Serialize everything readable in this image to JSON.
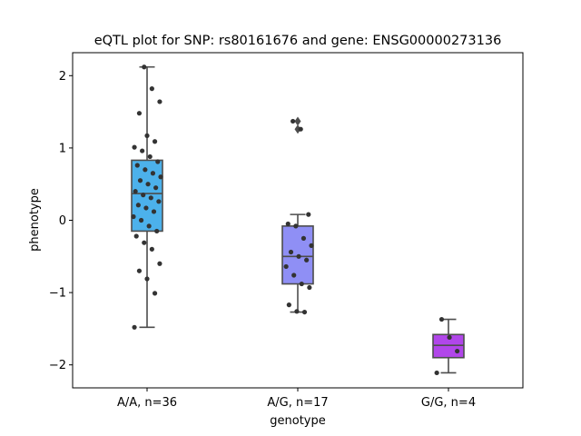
{
  "chart_data": {
    "type": "box",
    "title": "eQTL plot for SNP: rs80161676 and gene: ENSG00000273136",
    "xlabel": "genotype",
    "ylabel": "phenotype",
    "ylim": [
      -2.32,
      2.32
    ],
    "yticks": [
      2,
      1,
      0,
      -1,
      -2
    ],
    "yticks_labels": [
      "2",
      "1",
      "0",
      "−1",
      "−2"
    ],
    "categories": [
      "A/A, n=36",
      "A/G, n=17",
      "G/G, n=4"
    ],
    "series": [
      {
        "category": "A/A, n=36",
        "color": "#4cb1eb",
        "whisker_low": -1.48,
        "q1": -0.15,
        "median": 0.37,
        "q3": 0.83,
        "whisker_high": 2.12,
        "outliers": [],
        "points": [
          2.12,
          1.82,
          1.64,
          1.48,
          1.17,
          1.09,
          1.01,
          0.96,
          0.88,
          0.81,
          0.76,
          0.7,
          0.65,
          0.6,
          0.55,
          0.5,
          0.45,
          0.4,
          0.35,
          0.31,
          0.26,
          0.21,
          0.17,
          0.12,
          0.05,
          0.0,
          -0.08,
          -0.15,
          -0.22,
          -0.31,
          -0.4,
          -0.6,
          -0.7,
          -0.81,
          -1.01,
          -1.48
        ]
      },
      {
        "category": "A/G, n=17",
        "color": "#8f8ff5",
        "whisker_low": -1.27,
        "q1": -0.88,
        "median": -0.5,
        "q3": -0.08,
        "whisker_high": 0.08,
        "outliers": [
          1.37,
          1.26
        ],
        "points": [
          1.37,
          1.26,
          0.08,
          -0.05,
          -0.08,
          -0.25,
          -0.35,
          -0.44,
          -0.5,
          -0.55,
          -0.64,
          -0.76,
          -0.88,
          -0.93,
          -1.17,
          -1.26,
          -1.27
        ]
      },
      {
        "category": "G/G, n=4",
        "color": "#b146ea",
        "whisker_low": -2.11,
        "q1": -1.9,
        "median": -1.73,
        "q3": -1.58,
        "whisker_high": -1.37,
        "outliers": [],
        "points": [
          -1.37,
          -1.62,
          -1.81,
          -2.11
        ]
      }
    ]
  }
}
